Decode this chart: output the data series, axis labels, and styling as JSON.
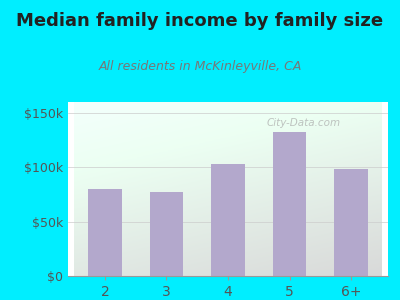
{
  "title": "Median family income by family size",
  "subtitle": "All residents in McKinleyville, CA",
  "categories": [
    "2",
    "3",
    "4",
    "5",
    "6+"
  ],
  "values": [
    80000,
    77000,
    103000,
    132000,
    98000
  ],
  "bar_color": "#b3a8cc",
  "bg_outer": "#00eeff",
  "title_color": "#222222",
  "subtitle_color": "#777777",
  "tick_color": "#555555",
  "ylim": [
    0,
    160000
  ],
  "yticks": [
    0,
    50000,
    100000,
    150000
  ],
  "ytick_labels": [
    "$0",
    "$50k",
    "$100k",
    "$150k"
  ],
  "watermark": "City-Data.com",
  "title_fontsize": 13,
  "subtitle_fontsize": 9
}
